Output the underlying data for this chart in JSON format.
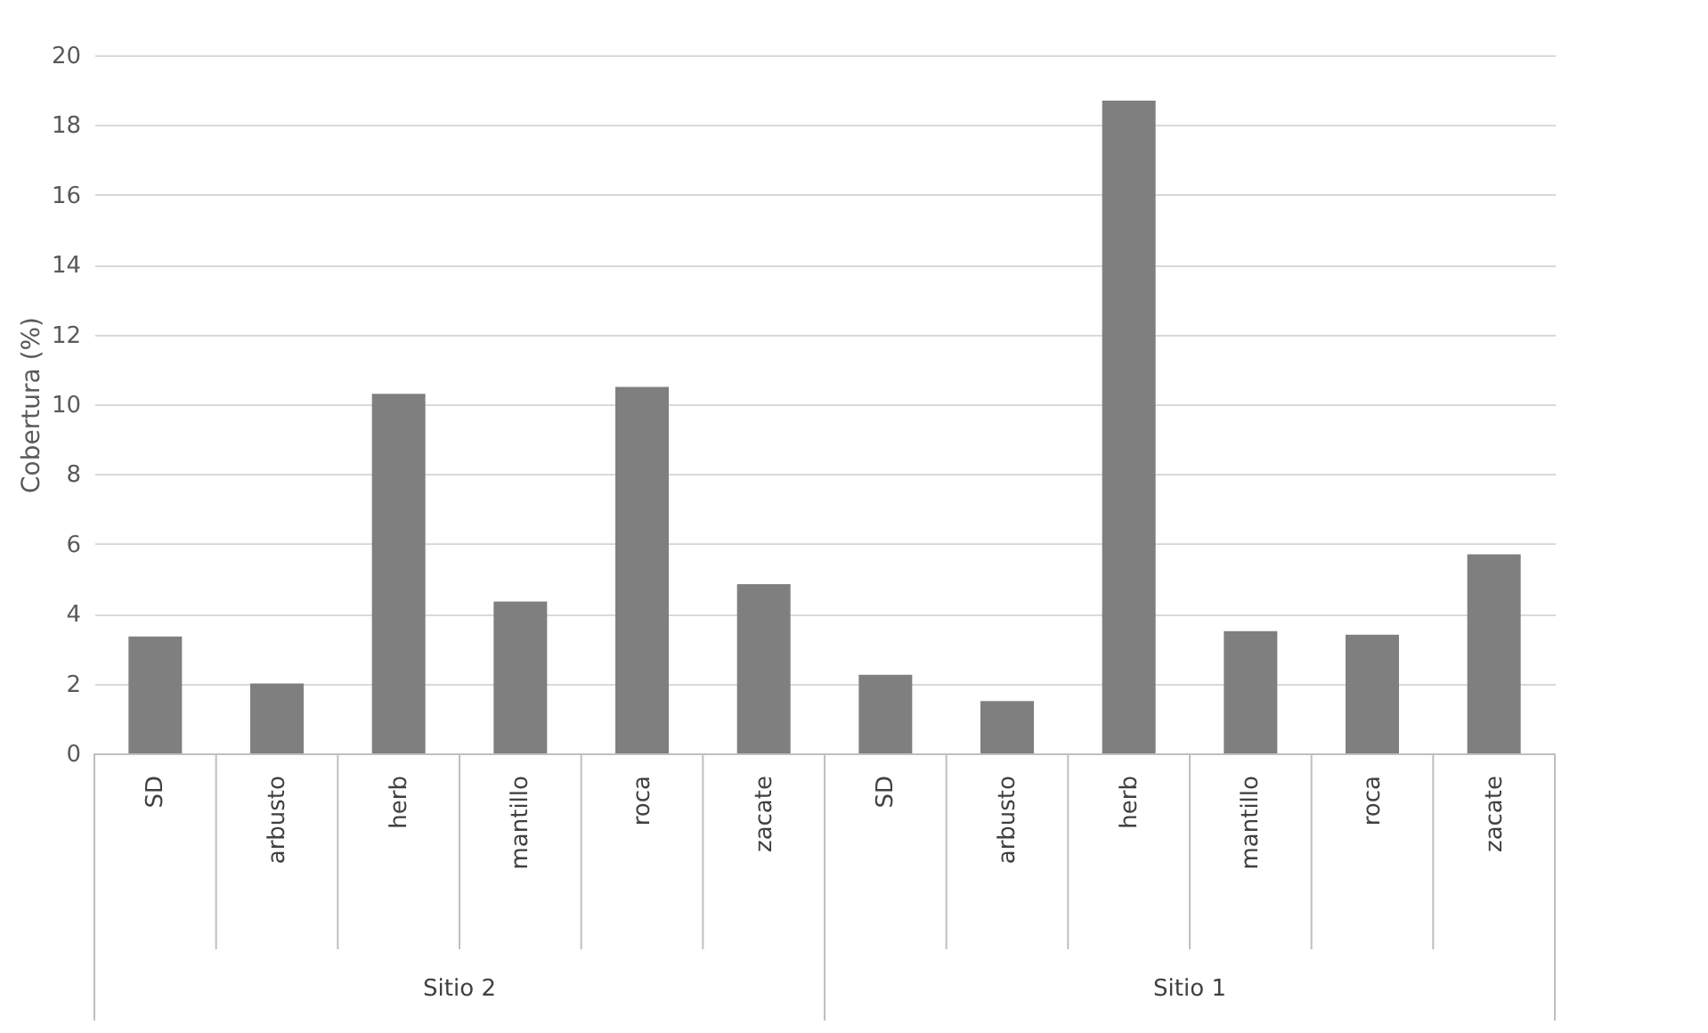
{
  "chart_data": {
    "type": "bar",
    "ylabel": "Cobertura (%)",
    "categories": [
      "SD",
      "arbusto",
      "herb",
      "mantillo",
      "roca",
      "zacate",
      "SD",
      "arbusto",
      "herb",
      "mantillo",
      "roca",
      "zacate"
    ],
    "values": [
      3.35,
      2.0,
      10.3,
      4.35,
      10.5,
      4.85,
      2.25,
      1.5,
      18.7,
      3.5,
      3.4,
      5.7
    ],
    "color": "#7f7f7f",
    "ylim": [
      0,
      20
    ],
    "yticks": [
      0,
      2,
      4,
      6,
      8,
      10,
      12,
      14,
      16,
      18,
      20
    ],
    "grid": "y",
    "annotations": [
      "Sitio 2",
      "Sitio 1"
    ]
  }
}
